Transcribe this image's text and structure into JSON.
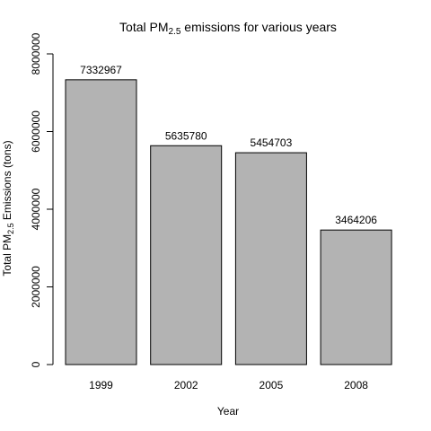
{
  "chart_data": {
    "type": "bar",
    "title_main": "Total PM",
    "title_sub": "2.5",
    "title_rest": " emissions for various years",
    "xlabel": "Year",
    "ylabel_main": "Total PM",
    "ylabel_sub": "2.5",
    "ylabel_rest": " Emissions (tons)",
    "categories": [
      "1999",
      "2002",
      "2005",
      "2008"
    ],
    "values": [
      7332967,
      5635780,
      5454703,
      3464206
    ],
    "value_labels": [
      "7332967",
      "5635780",
      "5454703",
      "3464206"
    ],
    "ylim": [
      0,
      8000000
    ],
    "yticks": [
      0,
      2000000,
      4000000,
      6000000,
      8000000
    ],
    "ytick_labels": [
      "0",
      "2000000",
      "4000000",
      "6000000",
      "8000000"
    ],
    "grid": false,
    "bar_color": "#b3b3b3"
  }
}
